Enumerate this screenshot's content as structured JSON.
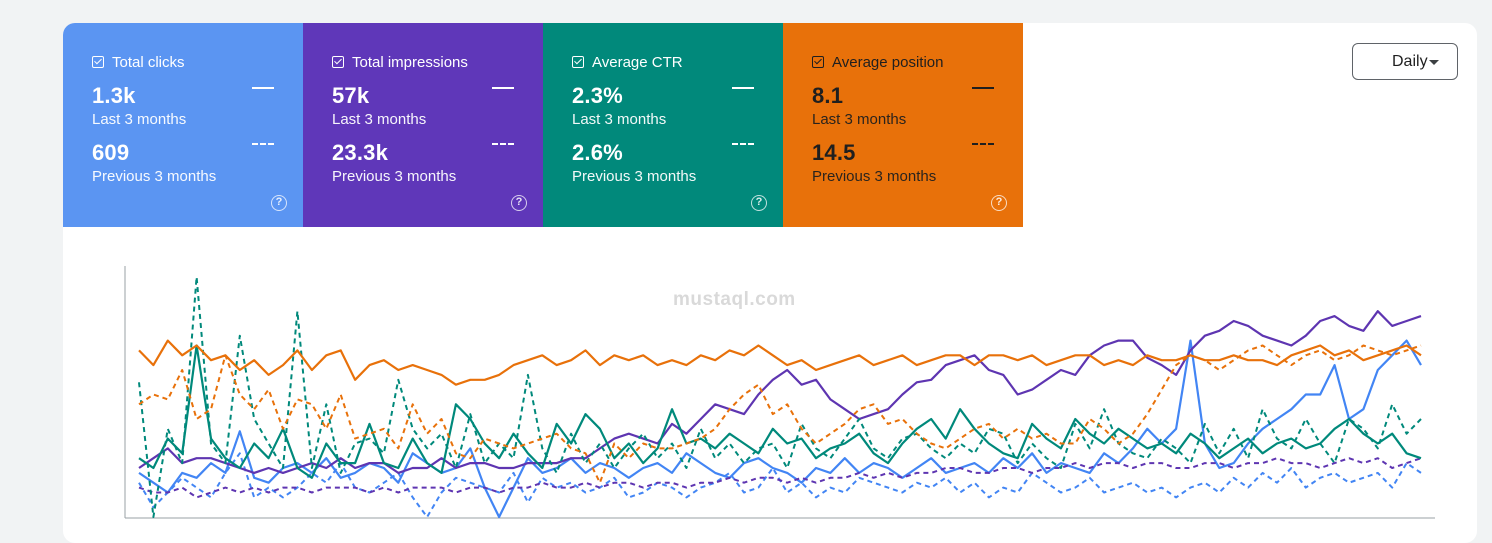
{
  "controls": {
    "range_label": "Daily"
  },
  "tiles": [
    {
      "title": "Total clicks",
      "current_value": "1.3k",
      "current_period": "Last 3 months",
      "previous_value": "609",
      "previous_period": "Previous 3 months",
      "color": "#5b95f2",
      "icon": "help-icon"
    },
    {
      "title": "Total impressions",
      "current_value": "57k",
      "current_period": "Last 3 months",
      "previous_value": "23.3k",
      "previous_period": "Previous 3 months",
      "color": "#5f37b9",
      "icon": "help-icon"
    },
    {
      "title": "Average CTR",
      "current_value": "2.3%",
      "current_period": "Last 3 months",
      "previous_value": "2.6%",
      "previous_period": "Previous 3 months",
      "color": "#01897b",
      "icon": "help-icon"
    },
    {
      "title": "Average position",
      "current_value": "8.1",
      "current_period": "Last 3 months",
      "previous_value": "14.5",
      "previous_period": "Previous 3 months",
      "color": "#e8710a",
      "icon": "help-icon"
    }
  ],
  "watermark": "mustaql.com",
  "chart_data": {
    "type": "line",
    "x_points": 90,
    "ylim": [
      0,
      100
    ],
    "grid": false,
    "series": [
      {
        "name": "Total clicks",
        "style": "solid",
        "color": "#4285f4",
        "values": [
          18,
          14,
          10,
          18,
          16,
          22,
          18,
          35,
          16,
          14,
          20,
          22,
          18,
          24,
          16,
          18,
          22,
          20,
          14,
          26,
          22,
          18,
          20,
          28,
          12,
          0,
          12,
          24,
          18,
          20,
          24,
          18,
          22,
          20,
          16,
          20,
          22,
          18,
          26,
          22,
          18,
          16,
          22,
          24,
          20,
          18,
          14,
          20,
          18,
          24,
          18,
          22,
          20,
          16,
          20,
          24,
          18,
          20,
          22,
          18,
          24,
          20,
          26,
          18,
          22,
          20,
          18,
          26,
          22,
          28,
          36,
          30,
          36,
          72,
          30,
          20,
          22,
          30,
          36,
          40,
          44,
          50,
          50,
          62,
          40,
          44,
          60,
          66,
          72,
          62
        ]
      },
      {
        "name": "Total clicks",
        "style": "dashed",
        "color": "#4285f4",
        "values": [
          14,
          4,
          10,
          16,
          12,
          8,
          18,
          26,
          8,
          12,
          8,
          12,
          18,
          14,
          22,
          12,
          10,
          14,
          18,
          8,
          0,
          10,
          16,
          14,
          12,
          10,
          18,
          6,
          16,
          12,
          14,
          10,
          12,
          16,
          8,
          10,
          14,
          12,
          8,
          12,
          14,
          18,
          10,
          12,
          20,
          10,
          14,
          8,
          12,
          10,
          16,
          14,
          12,
          10,
          14,
          12,
          16,
          10,
          14,
          8,
          12,
          10,
          18,
          14,
          10,
          12,
          16,
          10,
          12,
          14,
          10,
          12,
          8,
          12,
          14,
          10,
          16,
          12,
          18,
          14,
          20,
          12,
          16,
          18,
          14,
          16,
          18,
          12,
          22,
          18
        ]
      },
      {
        "name": "Total impressions",
        "style": "solid",
        "color": "#5e35b1",
        "values": [
          20,
          24,
          28,
          22,
          24,
          24,
          22,
          20,
          18,
          20,
          18,
          20,
          22,
          20,
          24,
          20,
          22,
          22,
          18,
          20,
          20,
          24,
          20,
          22,
          22,
          20,
          20,
          22,
          22,
          22,
          24,
          24,
          28,
          32,
          34,
          32,
          30,
          38,
          34,
          40,
          46,
          44,
          42,
          50,
          56,
          60,
          54,
          56,
          48,
          44,
          40,
          42,
          44,
          50,
          55,
          56,
          62,
          64,
          66,
          60,
          58,
          50,
          52,
          56,
          60,
          58,
          66,
          70,
          72,
          72,
          65,
          62,
          58,
          68,
          74,
          76,
          80,
          78,
          74,
          72,
          70,
          74,
          80,
          82,
          78,
          76,
          84,
          78,
          80,
          82
        ]
      },
      {
        "name": "Total impressions",
        "style": "dashed",
        "color": "#5e35b1",
        "values": [
          12,
          10,
          10,
          12,
          8,
          10,
          12,
          10,
          12,
          10,
          12,
          12,
          10,
          12,
          12,
          12,
          10,
          12,
          10,
          12,
          12,
          12,
          10,
          12,
          12,
          10,
          12,
          12,
          14,
          12,
          12,
          14,
          12,
          14,
          14,
          12,
          14,
          14,
          12,
          14,
          14,
          16,
          14,
          16,
          16,
          14,
          16,
          14,
          16,
          16,
          18,
          16,
          18,
          16,
          18,
          18,
          20,
          20,
          18,
          18,
          20,
          20,
          18,
          20,
          20,
          22,
          20,
          22,
          22,
          20,
          22,
          22,
          20,
          20,
          22,
          22,
          20,
          22,
          22,
          24,
          22,
          22,
          20,
          22,
          24,
          22,
          24,
          20,
          22,
          24
        ]
      },
      {
        "name": "Average CTR",
        "style": "solid",
        "color": "#00897b",
        "values": [
          24,
          20,
          32,
          26,
          70,
          32,
          24,
          20,
          30,
          24,
          36,
          20,
          16,
          30,
          22,
          22,
          38,
          22,
          20,
          32,
          22,
          18,
          46,
          40,
          30,
          24,
          34,
          26,
          20,
          38,
          30,
          42,
          36,
          24,
          30,
          22,
          28,
          44,
          30,
          32,
          28,
          34,
          30,
          26,
          36,
          30,
          32,
          24,
          28,
          30,
          34,
          26,
          22,
          30,
          36,
          40,
          32,
          44,
          36,
          30,
          26,
          24,
          38,
          32,
          28,
          40,
          34,
          30,
          36,
          32,
          28,
          30,
          26,
          34,
          30,
          24,
          28,
          32,
          26,
          30,
          32,
          28,
          30,
          36,
          40,
          34,
          30,
          34,
          26,
          24
        ]
      },
      {
        "name": "Average CTR",
        "style": "dashed",
        "color": "#00897b",
        "values": [
          55,
          0,
          36,
          22,
          98,
          30,
          22,
          74,
          40,
          30,
          20,
          84,
          20,
          46,
          18,
          30,
          32,
          26,
          56,
          36,
          28,
          34,
          20,
          42,
          22,
          30,
          24,
          58,
          28,
          18,
          34,
          22,
          30,
          20,
          28,
          34,
          24,
          30,
          20,
          36,
          24,
          30,
          22,
          28,
          30,
          20,
          38,
          28,
          24,
          32,
          40,
          28,
          24,
          32,
          34,
          28,
          24,
          30,
          26,
          36,
          34,
          22,
          30,
          24,
          20,
          38,
          28,
          44,
          30,
          26,
          24,
          32,
          28,
          22,
          38,
          26,
          36,
          24,
          44,
          32,
          28,
          40,
          30,
          22,
          40,
          36,
          28,
          46,
          34,
          40
        ]
      },
      {
        "name": "Average position",
        "style": "solid",
        "color": "#e8710a",
        "values": [
          68,
          62,
          72,
          66,
          70,
          64,
          66,
          60,
          64,
          58,
          62,
          68,
          60,
          66,
          68,
          56,
          62,
          64,
          60,
          62,
          60,
          58,
          54,
          56,
          56,
          58,
          62,
          64,
          66,
          62,
          64,
          68,
          62,
          66,
          64,
          66,
          62,
          64,
          62,
          66,
          64,
          68,
          66,
          70,
          66,
          62,
          64,
          60,
          62,
          64,
          66,
          62,
          64,
          66,
          62,
          64,
          66,
          66,
          62,
          66,
          66,
          64,
          66,
          62,
          64,
          66,
          66,
          62,
          64,
          62,
          66,
          64,
          64,
          66,
          64,
          64,
          66,
          64,
          64,
          62,
          66,
          68,
          70,
          66,
          68,
          64,
          66,
          68,
          70,
          66
        ]
      },
      {
        "name": "Average position",
        "style": "dashed",
        "color": "#e8710a",
        "values": [
          46,
          50,
          48,
          60,
          40,
          44,
          66,
          50,
          44,
          52,
          36,
          48,
          46,
          36,
          50,
          32,
          34,
          36,
          28,
          46,
          34,
          40,
          26,
          24,
          32,
          30,
          28,
          30,
          32,
          34,
          28,
          26,
          14,
          30,
          24,
          30,
          28,
          28,
          30,
          32,
          36,
          44,
          50,
          54,
          42,
          46,
          36,
          30,
          34,
          38,
          44,
          46,
          38,
          40,
          34,
          30,
          28,
          32,
          36,
          38,
          32,
          36,
          32,
          34,
          30,
          30,
          40,
          36,
          30,
          34,
          42,
          52,
          62,
          66,
          64,
          60,
          64,
          68,
          70,
          66,
          62,
          66,
          68,
          64,
          66,
          70,
          68,
          66,
          68,
          70
        ]
      }
    ]
  }
}
